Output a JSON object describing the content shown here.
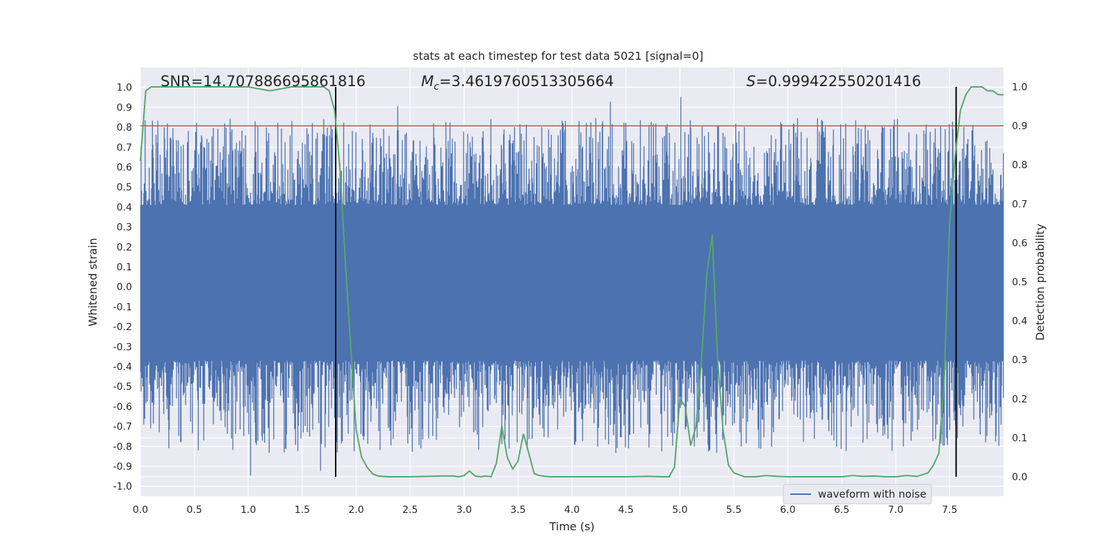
{
  "chart_data": {
    "type": "line",
    "title": "stats at each timestep for test data 5021 [signal=0]",
    "xlabel": "Time (s)",
    "ylabel_left": "Whitened strain",
    "ylabel_right": "Detection probability",
    "xlim": [
      0.0,
      8.0
    ],
    "ylim_left": [
      -1.05,
      1.1
    ],
    "ylim_right": [
      -0.05,
      1.05
    ],
    "x_ticks": [
      0.0,
      0.5,
      1.0,
      1.5,
      2.0,
      2.5,
      3.0,
      3.5,
      4.0,
      4.5,
      5.0,
      5.5,
      6.0,
      6.5,
      7.0,
      7.5
    ],
    "x_tick_labels": [
      "0.0",
      "0.5",
      "1.0",
      "1.5",
      "2.0",
      "2.5",
      "3.0",
      "3.5",
      "4.0",
      "4.5",
      "5.0",
      "5.5",
      "6.0",
      "6.5",
      "7.0",
      "7.5"
    ],
    "y_left_ticks": [
      1.0,
      0.9,
      0.8,
      0.7,
      0.6,
      0.5,
      0.4,
      0.3,
      0.2,
      0.1,
      0.0,
      -0.1,
      -0.2,
      -0.3,
      -0.4,
      -0.5,
      -0.6,
      -0.7,
      -0.8,
      -0.9,
      -1.0
    ],
    "y_left_tick_labels": [
      "1.0",
      "0.9",
      "0.8",
      "0.7",
      "0.6",
      "0.5",
      "0.4",
      "0.3",
      "0.2",
      "0.1",
      "0.0",
      "-0.1",
      "-0.2",
      "-0.3",
      "-0.4",
      "-0.5",
      "-0.6",
      "-0.7",
      "-0.8",
      "-0.9",
      "-1.0"
    ],
    "y_right_ticks": [
      1.0,
      0.9,
      0.8,
      0.7,
      0.6,
      0.5,
      0.4,
      0.3,
      0.2,
      0.1,
      0.0
    ],
    "y_right_tick_labels": [
      "1.0",
      "0.9",
      "0.8",
      "0.7",
      "0.6",
      "0.5",
      "0.4",
      "0.3",
      "0.2",
      "0.1",
      "0.0"
    ],
    "annotations": {
      "snr": "SNR=14.707886695861816",
      "mc_symbol": "M",
      "mc_sub": "c",
      "mc_value": "=3.4619760513305664",
      "s_symbol": "S",
      "s_value": "=0.999422550201416"
    },
    "legend": {
      "position": "lower-right",
      "entries": [
        "waveform with noise"
      ]
    },
    "grid": true,
    "colors": {
      "waveform": "#4c72b0",
      "probability": "#55a868",
      "threshold": "#c44e52",
      "markers": "#000000",
      "background": "#eaeaf2"
    },
    "threshold_right": 0.9,
    "vertical_markers_x": [
      1.81,
      7.56
    ],
    "waveform": {
      "name": "waveform with noise",
      "x_range": [
        0.0,
        8.0
      ],
      "core_band": [
        -0.37,
        0.41
      ],
      "peak_extent": [
        -0.95,
        0.97
      ]
    },
    "probability_series": {
      "x": [
        0.0,
        0.05,
        0.1,
        0.2,
        0.5,
        1.0,
        1.2,
        1.4,
        1.6,
        1.7,
        1.75,
        1.8,
        1.85,
        1.9,
        1.95,
        2.0,
        2.05,
        2.1,
        2.15,
        2.2,
        2.3,
        2.5,
        2.8,
        2.9,
        2.95,
        3.0,
        3.05,
        3.1,
        3.15,
        3.2,
        3.25,
        3.3,
        3.35,
        3.4,
        3.45,
        3.5,
        3.55,
        3.6,
        3.65,
        3.7,
        3.75,
        3.8,
        4.0,
        4.5,
        4.7,
        4.85,
        4.9,
        4.95,
        5.0,
        5.05,
        5.1,
        5.15,
        5.2,
        5.25,
        5.3,
        5.35,
        5.4,
        5.45,
        5.5,
        5.55,
        5.6,
        5.7,
        5.8,
        5.9,
        6.0,
        6.5,
        6.6,
        6.7,
        6.8,
        6.9,
        7.0,
        7.1,
        7.2,
        7.3,
        7.35,
        7.4,
        7.45,
        7.5,
        7.55,
        7.6,
        7.65,
        7.7,
        7.75,
        7.8,
        7.85,
        7.9,
        7.95,
        8.0
      ],
      "values": [
        0.81,
        0.99,
        1.0,
        1.0,
        1.0,
        1.0,
        0.99,
        1.0,
        1.0,
        1.0,
        0.99,
        0.94,
        0.79,
        0.55,
        0.33,
        0.12,
        0.05,
        0.025,
        0.008,
        0.002,
        0.0,
        0.0,
        0.002,
        0.002,
        0.0,
        0.003,
        0.015,
        0.002,
        0.0,
        0.002,
        0.0,
        0.035,
        0.13,
        0.05,
        0.02,
        0.04,
        0.11,
        0.06,
        0.008,
        0.003,
        0.001,
        0.0,
        0.0,
        0.0,
        0.001,
        0.0,
        0.0,
        0.025,
        0.2,
        0.18,
        0.08,
        0.13,
        0.3,
        0.52,
        0.62,
        0.3,
        0.12,
        0.03,
        0.01,
        0.005,
        0.0,
        0.0,
        0.003,
        0.001,
        0.0,
        0.0,
        0.003,
        0.001,
        0.002,
        0.0,
        0.0,
        0.003,
        0.001,
        0.01,
        0.03,
        0.06,
        0.25,
        0.65,
        0.82,
        0.94,
        0.98,
        1.0,
        1.0,
        1.0,
        0.99,
        0.99,
        0.98,
        0.98
      ]
    }
  }
}
